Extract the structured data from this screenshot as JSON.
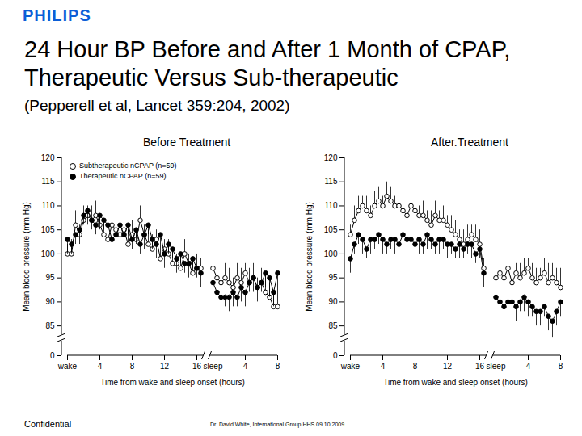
{
  "slide": {
    "logo": "PHILIPS",
    "title": "24 Hour BP Before and After 1 Month of CPAP, Therapeutic Versus Sub-therapeutic",
    "subtitle": "(Pepperell et al, Lancet 359:204, 2002)",
    "footer_left": "Confidential",
    "footer_center": "Dr. David White, International Group HHS 09.10.2009"
  },
  "chart_data": [
    {
      "type": "line",
      "title": "Before Treatment",
      "xlabel": "Time from wake and sleep onset (hours)",
      "ylabel": "Mean blood pressure (mm.Hg)",
      "categories": [
        "wake",
        null,
        null,
        null,
        null,
        null,
        null,
        null,
        "4",
        null,
        null,
        null,
        null,
        null,
        null,
        null,
        "8",
        null,
        null,
        null,
        null,
        null,
        null,
        null,
        "12",
        null,
        null,
        null,
        null,
        null,
        null,
        null,
        "16",
        null,
        null,
        null,
        "sleep",
        null,
        null,
        null,
        null,
        null,
        null,
        null,
        "4",
        null,
        null,
        null,
        null,
        null,
        null,
        null,
        "8"
      ],
      "ylim": [
        0,
        120
      ],
      "yticks": [
        0,
        85,
        90,
        95,
        100,
        105,
        110,
        115,
        120
      ],
      "legend": "top-left",
      "series": [
        {
          "name": "Subtherapeutic nCPAP (n=59)",
          "color": "#000000",
          "marker": "open",
          "values": [
            100,
            100,
            106,
            104,
            107,
            108,
            107,
            108,
            106,
            104,
            103,
            106,
            105,
            104,
            105,
            102,
            104,
            103,
            107,
            104,
            102,
            101,
            103,
            99,
            101,
            100,
            98,
            98,
            97,
            100,
            98,
            96,
            97,
            97,
            null,
            null,
            97,
            95,
            94,
            95,
            94,
            93,
            95,
            94,
            96,
            94,
            95,
            93,
            94,
            92,
            91,
            89,
            89
          ],
          "errors": [
            2,
            3,
            3,
            2,
            3,
            2,
            3,
            3,
            2,
            3,
            3,
            2,
            3,
            3,
            2,
            3,
            3,
            2,
            3,
            2,
            3,
            3,
            2,
            3,
            2,
            3,
            3,
            2,
            3,
            3,
            2,
            3,
            3,
            2,
            null,
            null,
            3,
            3,
            2,
            3,
            3,
            2,
            3,
            3,
            2,
            3,
            3,
            2,
            3,
            4,
            3,
            3,
            4
          ]
        },
        {
          "name": "Therapeutic nCPAP (n=59)",
          "color": "#000000",
          "marker": "filled",
          "values": [
            103,
            102,
            104,
            105,
            108,
            109,
            107,
            106,
            108,
            107,
            106,
            103,
            104,
            106,
            104,
            106,
            103,
            105,
            102,
            104,
            106,
            103,
            102,
            104,
            100,
            102,
            101,
            99,
            100,
            98,
            98,
            99,
            97,
            96,
            null,
            null,
            94,
            92,
            91,
            91,
            91,
            92,
            91,
            93,
            92,
            94,
            95,
            93,
            94,
            96,
            95,
            92,
            96
          ],
          "errors": [
            3,
            2,
            2,
            3,
            2,
            3,
            2,
            2,
            3,
            2,
            2,
            3,
            2,
            2,
            3,
            2,
            2,
            3,
            2,
            3,
            2,
            2,
            3,
            2,
            3,
            2,
            2,
            3,
            2,
            2,
            3,
            2,
            2,
            3,
            null,
            null,
            2,
            3,
            3,
            2,
            3,
            3,
            2,
            3,
            3,
            2,
            3,
            3,
            2,
            3,
            4,
            3,
            3
          ]
        }
      ]
    },
    {
      "type": "line",
      "title": "After.Treatment",
      "xlabel": "Time from wake and sleep onset (hours)",
      "ylabel": "Mean blood pressure (mm.Hg)",
      "categories": [
        "wake",
        null,
        null,
        null,
        null,
        null,
        null,
        null,
        "4",
        null,
        null,
        null,
        null,
        null,
        null,
        null,
        "8",
        null,
        null,
        null,
        null,
        null,
        null,
        null,
        "12",
        null,
        null,
        null,
        null,
        null,
        null,
        null,
        "16",
        null,
        null,
        null,
        "sleep",
        null,
        null,
        null,
        null,
        null,
        null,
        null,
        "4",
        null,
        null,
        null,
        null,
        null,
        null,
        null,
        "8"
      ],
      "ylim": [
        0,
        120
      ],
      "yticks": [
        0,
        85,
        90,
        95,
        100,
        105,
        110,
        115,
        120
      ],
      "series": [
        {
          "color": "#000000",
          "marker": "open",
          "values": [
            104,
            107,
            109,
            110,
            109,
            108,
            110,
            111,
            110,
            112,
            111,
            110,
            110,
            109,
            108,
            110,
            109,
            108,
            108,
            107,
            106,
            108,
            107,
            107,
            106,
            105,
            104,
            103,
            102,
            103,
            104,
            103,
            102,
            97,
            null,
            null,
            95,
            96,
            95,
            97,
            94,
            96,
            95,
            96,
            97,
            95,
            94,
            95,
            96,
            94,
            95,
            94,
            93
          ],
          "errors": [
            2,
            3,
            3,
            2,
            3,
            2,
            3,
            3,
            2,
            3,
            3,
            2,
            3,
            3,
            2,
            3,
            3,
            2,
            3,
            2,
            3,
            3,
            2,
            3,
            2,
            3,
            3,
            2,
            3,
            3,
            2,
            3,
            3,
            2,
            null,
            null,
            3,
            3,
            2,
            3,
            3,
            2,
            3,
            3,
            2,
            3,
            3,
            2,
            3,
            4,
            3,
            3,
            4
          ]
        },
        {
          "color": "#000000",
          "marker": "filled",
          "values": [
            99,
            102,
            104,
            103,
            101,
            103,
            103,
            104,
            103,
            102,
            103,
            103,
            102,
            104,
            103,
            103,
            102,
            103,
            102,
            104,
            103,
            102,
            103,
            103,
            102,
            102,
            101,
            102,
            101,
            102,
            102,
            100,
            101,
            96,
            null,
            null,
            91,
            90,
            89,
            90,
            90,
            89,
            90,
            91,
            90,
            89,
            88,
            88,
            89,
            87,
            86,
            88,
            90
          ],
          "errors": [
            3,
            2,
            2,
            3,
            2,
            3,
            2,
            2,
            3,
            2,
            2,
            3,
            2,
            2,
            3,
            2,
            2,
            3,
            2,
            3,
            2,
            2,
            3,
            2,
            3,
            2,
            2,
            3,
            2,
            2,
            3,
            2,
            2,
            3,
            null,
            null,
            2,
            3,
            3,
            2,
            3,
            3,
            2,
            3,
            3,
            2,
            3,
            3,
            2,
            3,
            4,
            3,
            3
          ]
        }
      ]
    }
  ]
}
